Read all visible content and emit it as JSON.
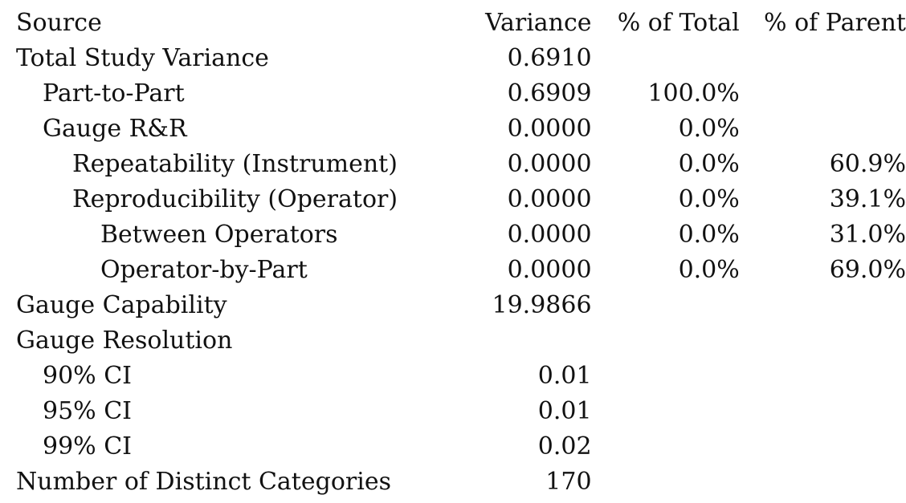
{
  "header": {
    "source": "Source",
    "variance": "Variance",
    "pct_total": "% of Total",
    "pct_parent": "% of Parent"
  },
  "rows": [
    {
      "source": "Total Study Variance",
      "variance": "0.6910",
      "pct_total": "",
      "pct_parent": ""
    },
    {
      "source": "Part-to-Part",
      "variance": "0.6909",
      "pct_total": "100.0%",
      "pct_parent": ""
    },
    {
      "source": "Gauge R&R",
      "variance": "0.0000",
      "pct_total": "0.0%",
      "pct_parent": ""
    },
    {
      "source": "Repeatability (Instrument)",
      "variance": "0.0000",
      "pct_total": "0.0%",
      "pct_parent": "60.9%"
    },
    {
      "source": "Reproducibility (Operator)",
      "variance": "0.0000",
      "pct_total": "0.0%",
      "pct_parent": "39.1%"
    },
    {
      "source": "Between Operators",
      "variance": "0.0000",
      "pct_total": "0.0%",
      "pct_parent": "31.0%"
    },
    {
      "source": "Operator-by-Part",
      "variance": "0.0000",
      "pct_total": "0.0%",
      "pct_parent": "69.0%"
    },
    {
      "source": "Gauge Capability",
      "variance": "19.9866",
      "pct_total": "",
      "pct_parent": ""
    },
    {
      "source": "Gauge Resolution",
      "variance": "",
      "pct_total": "",
      "pct_parent": ""
    },
    {
      "source": "90% CI",
      "variance": "0.01",
      "pct_total": "",
      "pct_parent": ""
    },
    {
      "source": "95% CI",
      "variance": "0.01",
      "pct_total": "",
      "pct_parent": ""
    },
    {
      "source": "99% CI",
      "variance": "0.02",
      "pct_total": "",
      "pct_parent": ""
    },
    {
      "source": "Number of Distinct Categories",
      "variance": "170",
      "pct_total": "",
      "pct_parent": ""
    }
  ]
}
